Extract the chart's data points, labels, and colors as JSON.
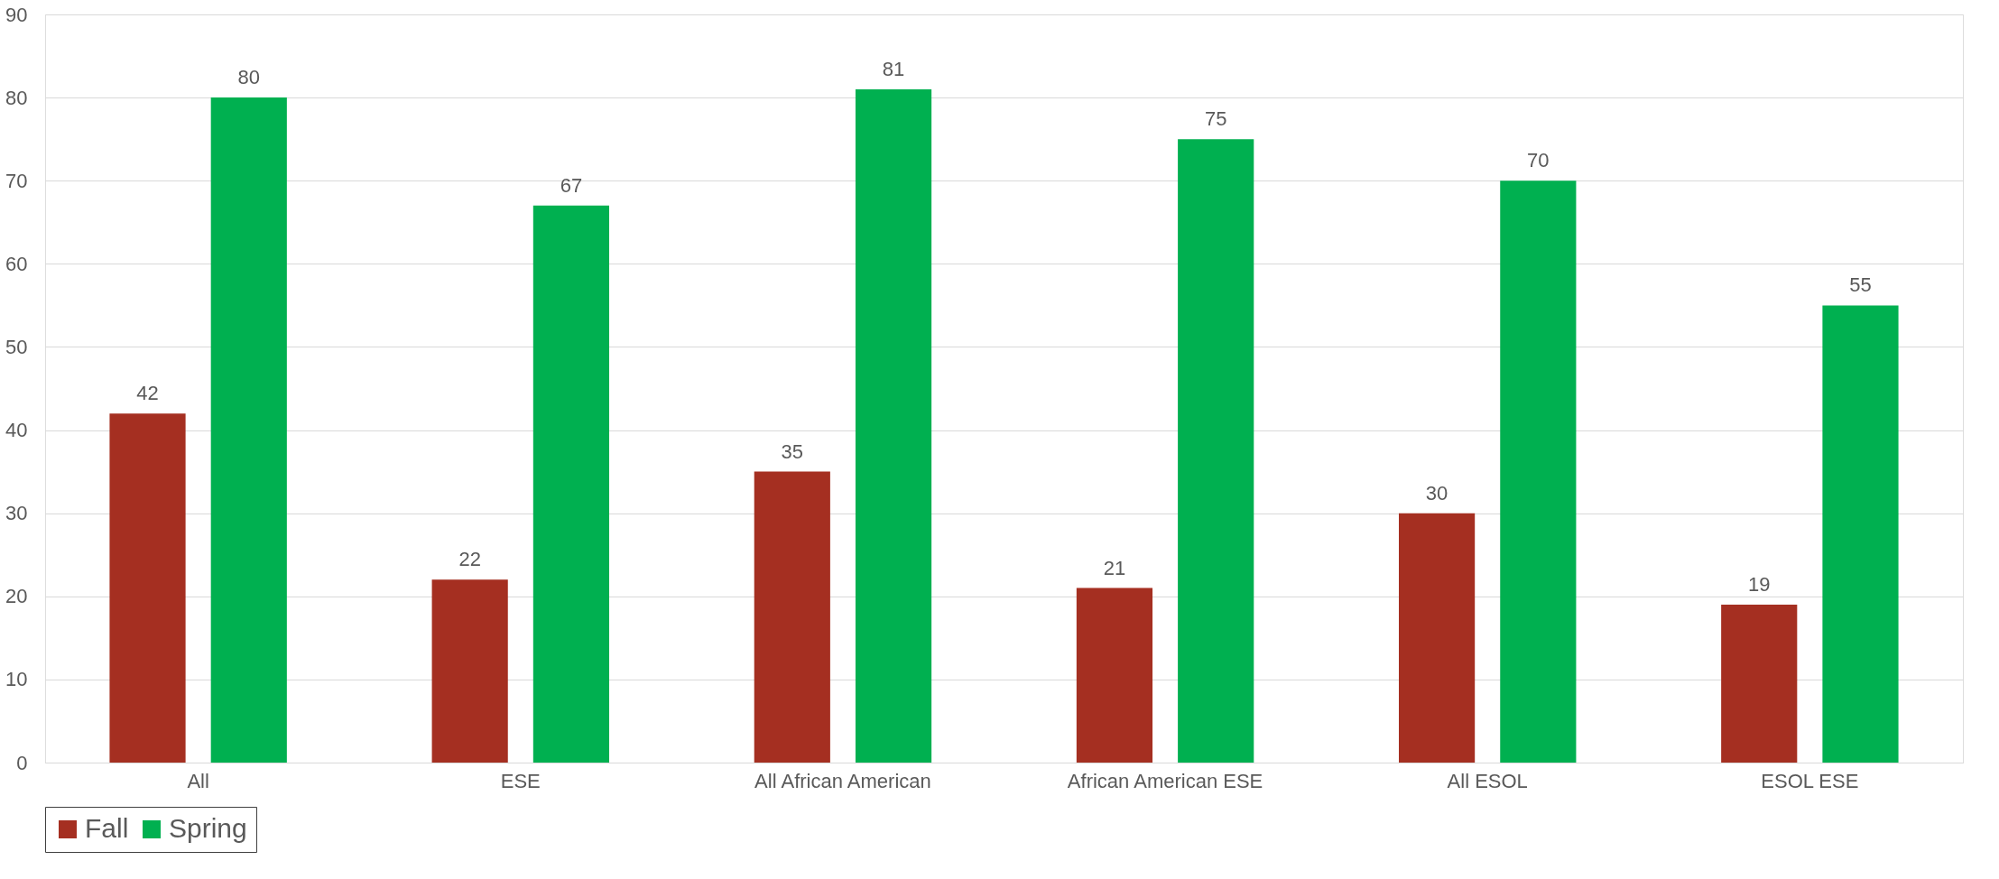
{
  "chart_data": {
    "type": "bar",
    "categories": [
      "All",
      "ESE",
      "All African American",
      "African American ESE",
      "All ESOL",
      "ESOL ESE"
    ],
    "series": [
      {
        "name": "Fall",
        "color": "#a52f21",
        "values": [
          42,
          22,
          35,
          21,
          30,
          19
        ]
      },
      {
        "name": "Spring",
        "color": "#00b050",
        "values": [
          80,
          67,
          81,
          75,
          70,
          55
        ]
      }
    ],
    "ylim": [
      0,
      90
    ],
    "yticks": [
      0,
      10,
      20,
      30,
      40,
      50,
      60,
      70,
      80,
      90
    ],
    "grid": "y",
    "data_labels": true,
    "legend": "bottom"
  }
}
